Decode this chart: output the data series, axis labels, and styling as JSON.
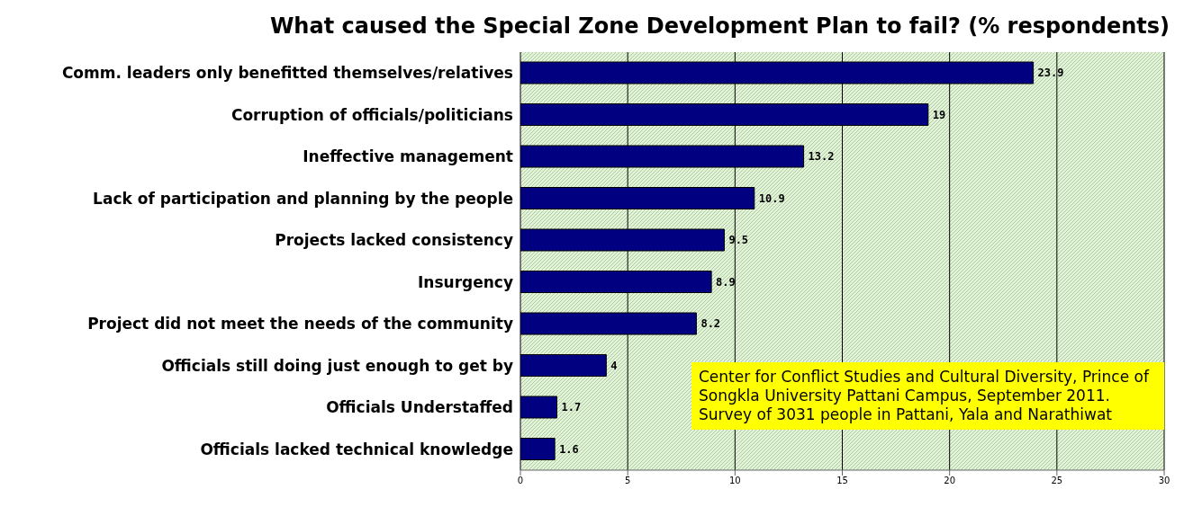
{
  "chart_data": {
    "type": "bar",
    "orientation": "horizontal",
    "title": "What caused the Special Zone Development Plan to fail? (% respondents)",
    "categories": [
      "Comm. leaders only benefitted themselves/relatives",
      "Corruption of officials/politicians",
      "Ineffective management",
      "Lack of participation and planning by the people",
      "Projects lacked consistency",
      "Insurgency",
      "Project did not meet the needs of the community",
      "Officials still doing just enough to get by",
      "Officials Understaffed",
      "Officials lacked technical knowledge"
    ],
    "values": [
      23.9,
      19,
      13.2,
      10.9,
      9.5,
      8.9,
      8.2,
      4,
      1.7,
      1.6
    ],
    "color": "#000080",
    "xlim": [
      0,
      30
    ],
    "xticks": [
      0,
      5,
      10,
      15,
      20,
      25,
      30
    ],
    "grid": "x",
    "data_labels": true,
    "annotations": [
      "Center for Conflict Studies and Cultural Diversity, Prince of Songkla University Pattani Campus, September 2011.  Survey of 3031 people in Pattani, Yala and Narathiwat"
    ]
  }
}
